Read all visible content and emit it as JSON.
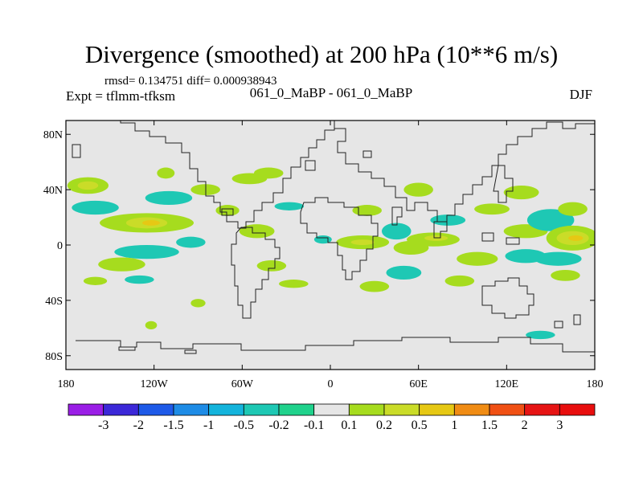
{
  "chart_data": {
    "type": "heatmap",
    "title": "Divergence (smoothed) at 200 hPa (10**6 m/s)",
    "stats_line": "rmsd= 0.134751 diff= 0.000938943",
    "left_label": "Expt = tflmm-tfksm",
    "center_label": "061_0_MaBP - 061_0_MaBP",
    "right_label": "DJF",
    "x_axis": {
      "range": [
        -180,
        180
      ],
      "ticks": [
        {
          "value": -180,
          "label": "180"
        },
        {
          "value": -120,
          "label": "120W"
        },
        {
          "value": -60,
          "label": "60W"
        },
        {
          "value": 0,
          "label": "0"
        },
        {
          "value": 60,
          "label": "60E"
        },
        {
          "value": 120,
          "label": "120E"
        },
        {
          "value": 180,
          "label": "180"
        }
      ]
    },
    "y_axis": {
      "range": [
        -90,
        90
      ],
      "ticks": [
        {
          "value": 80,
          "label": "80N"
        },
        {
          "value": 40,
          "label": "40N"
        },
        {
          "value": 0,
          "label": "0"
        },
        {
          "value": -40,
          "label": "40S"
        },
        {
          "value": -80,
          "label": "80S"
        }
      ]
    },
    "colorbar": {
      "labels": [
        "-3",
        "-2",
        "-1.5",
        "-1",
        "-0.5",
        "-0.2",
        "-0.1",
        "0.1",
        "0.2",
        "0.5",
        "1",
        "1.5",
        "2",
        "3"
      ],
      "colors": [
        "#9a1ee6",
        "#3c28d8",
        "#1e5ae8",
        "#1e8ce6",
        "#14b4dc",
        "#1ec8b4",
        "#20d28c",
        "#e6e6e6",
        "#a6dc1e",
        "#cadc28",
        "#e6c814",
        "#f08c14",
        "#f05014",
        "#e61414",
        "#e80e0e"
      ]
    },
    "regions": [
      {
        "lon": -165,
        "lat": 43,
        "rlon": 14,
        "rlat": 6,
        "level": 0.2
      },
      {
        "lon": -165,
        "lat": 43,
        "rlon": 7,
        "rlat": 3,
        "level": 0.5
      },
      {
        "lon": -160,
        "lat": 27,
        "rlon": 16,
        "rlat": 5,
        "level": -0.2
      },
      {
        "lon": -125,
        "lat": 16,
        "rlon": 32,
        "rlat": 7,
        "level": 0.2
      },
      {
        "lon": -125,
        "lat": 16,
        "rlon": 14,
        "rlat": 4,
        "level": 0.5
      },
      {
        "lon": -122,
        "lat": 16,
        "rlon": 6,
        "rlat": 2,
        "level": 1
      },
      {
        "lon": -110,
        "lat": 34,
        "rlon": 16,
        "rlat": 5,
        "level": -0.2
      },
      {
        "lon": -125,
        "lat": -5,
        "rlon": 22,
        "rlat": 5,
        "level": -0.2
      },
      {
        "lon": -112,
        "lat": 52,
        "rlon": 6,
        "rlat": 4,
        "level": 0.2
      },
      {
        "lon": -142,
        "lat": -14,
        "rlon": 16,
        "rlat": 5,
        "level": 0.2
      },
      {
        "lon": -130,
        "lat": -25,
        "rlon": 10,
        "rlat": 3,
        "level": -0.2
      },
      {
        "lon": -160,
        "lat": -26,
        "rlon": 8,
        "rlat": 3,
        "level": 0.2
      },
      {
        "lon": -85,
        "lat": 40,
        "rlon": 10,
        "rlat": 4,
        "level": 0.2
      },
      {
        "lon": -70,
        "lat": 25,
        "rlon": 8,
        "rlat": 4,
        "level": 0.2
      },
      {
        "lon": -55,
        "lat": 48,
        "rlon": 12,
        "rlat": 4,
        "level": 0.2
      },
      {
        "lon": -42,
        "lat": 52,
        "rlon": 10,
        "rlat": 4,
        "level": 0.2
      },
      {
        "lon": -50,
        "lat": 10,
        "rlon": 12,
        "rlat": 5,
        "level": 0.2
      },
      {
        "lon": -28,
        "lat": 28,
        "rlon": 10,
        "rlat": 3,
        "level": -0.2
      },
      {
        "lon": -40,
        "lat": -15,
        "rlon": 10,
        "rlat": 4,
        "level": 0.2
      },
      {
        "lon": -25,
        "lat": -28,
        "rlon": 10,
        "rlat": 3,
        "level": 0.2
      },
      {
        "lon": -95,
        "lat": 2,
        "rlon": 10,
        "rlat": 4,
        "level": -0.2
      },
      {
        "lon": -5,
        "lat": 4,
        "rlon": 6,
        "rlat": 3,
        "level": -0.2
      },
      {
        "lon": 22,
        "lat": 2,
        "rlon": 18,
        "rlat": 5,
        "level": 0.2
      },
      {
        "lon": 22,
        "lat": 2,
        "rlon": 8,
        "rlat": 2,
        "level": 0.5
      },
      {
        "lon": 25,
        "lat": 25,
        "rlon": 10,
        "rlat": 4,
        "level": 0.2
      },
      {
        "lon": 45,
        "lat": 10,
        "rlon": 10,
        "rlat": 6,
        "level": -0.2
      },
      {
        "lon": 55,
        "lat": -2,
        "rlon": 12,
        "rlat": 5,
        "level": 0.2
      },
      {
        "lon": 70,
        "lat": 4,
        "rlon": 18,
        "rlat": 5,
        "level": 0.2
      },
      {
        "lon": 72,
        "lat": 5,
        "rlon": 8,
        "rlat": 2,
        "level": 0.5
      },
      {
        "lon": 60,
        "lat": 40,
        "rlon": 10,
        "rlat": 5,
        "level": 0.2
      },
      {
        "lon": 80,
        "lat": 18,
        "rlon": 12,
        "rlat": 4,
        "level": -0.2
      },
      {
        "lon": 50,
        "lat": -20,
        "rlon": 12,
        "rlat": 5,
        "level": -0.2
      },
      {
        "lon": 30,
        "lat": -30,
        "rlon": 10,
        "rlat": 4,
        "level": 0.2
      },
      {
        "lon": 100,
        "lat": -10,
        "rlon": 14,
        "rlat": 5,
        "level": 0.2
      },
      {
        "lon": 88,
        "lat": -26,
        "rlon": 10,
        "rlat": 4,
        "level": 0.2
      },
      {
        "lon": 110,
        "lat": 26,
        "rlon": 12,
        "rlat": 4,
        "level": 0.2
      },
      {
        "lon": 130,
        "lat": 38,
        "rlon": 12,
        "rlat": 5,
        "level": 0.2
      },
      {
        "lon": 133,
        "lat": 10,
        "rlon": 15,
        "rlat": 5,
        "level": 0.2
      },
      {
        "lon": 133,
        "lat": -8,
        "rlon": 14,
        "rlat": 5,
        "level": -0.2
      },
      {
        "lon": 150,
        "lat": 18,
        "rlon": 16,
        "rlat": 8,
        "level": -0.2
      },
      {
        "lon": 165,
        "lat": 5,
        "rlon": 18,
        "rlat": 9,
        "level": 0.2
      },
      {
        "lon": 165,
        "lat": 5,
        "rlon": 11,
        "rlat": 5,
        "level": 0.5
      },
      {
        "lon": 167,
        "lat": 5,
        "rlon": 5,
        "rlat": 2,
        "level": 1
      },
      {
        "lon": 165,
        "lat": 26,
        "rlon": 10,
        "rlat": 5,
        "level": 0.2
      },
      {
        "lon": 155,
        "lat": -10,
        "rlon": 16,
        "rlat": 5,
        "level": -0.2
      },
      {
        "lon": 160,
        "lat": -22,
        "rlon": 10,
        "rlat": 4,
        "level": 0.2
      },
      {
        "lon": 143,
        "lat": -65,
        "rlon": 10,
        "rlat": 3,
        "level": -0.2
      },
      {
        "lon": -122,
        "lat": -58,
        "rlon": 4,
        "rlat": 3,
        "level": 0.2
      },
      {
        "lon": -90,
        "lat": -42,
        "rlon": 5,
        "rlat": 3,
        "level": 0.2
      }
    ]
  }
}
